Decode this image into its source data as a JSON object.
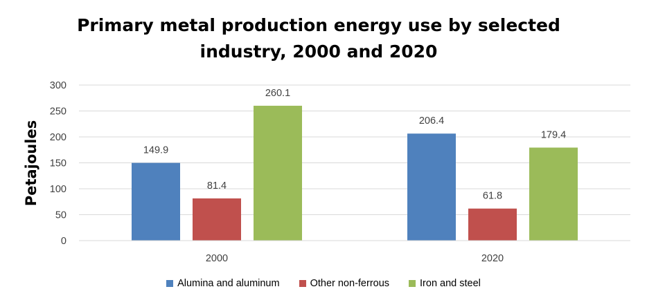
{
  "chart_data": {
    "type": "bar",
    "title_lines": [
      "Primary metal production energy use by selected",
      "industry, 2000 and 2020"
    ],
    "xlabel": "",
    "ylabel": "Petajoules",
    "ylim": [
      0,
      300
    ],
    "yticks": [
      0,
      50,
      100,
      150,
      200,
      250,
      300
    ],
    "categories": [
      "2000",
      "2020"
    ],
    "series": [
      {
        "name": "Alumina and aluminum",
        "color": "#4f81bd",
        "values": [
          149.9,
          206.4
        ]
      },
      {
        "name": "Other non-ferrous",
        "color": "#c0504d",
        "values": [
          81.4,
          61.8
        ]
      },
      {
        "name": "Iron and steel",
        "color": "#9bbb59",
        "values": [
          260.1,
          179.4
        ]
      }
    ],
    "grid": true,
    "legend_position": "bottom"
  }
}
